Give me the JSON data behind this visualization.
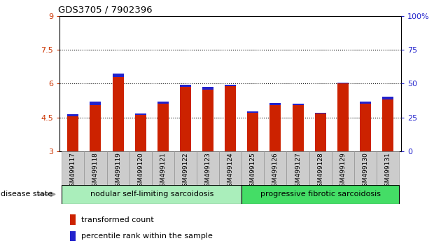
{
  "title": "GDS3705 / 7902396",
  "samples": [
    "GSM499117",
    "GSM499118",
    "GSM499119",
    "GSM499120",
    "GSM499121",
    "GSM499122",
    "GSM499123",
    "GSM499124",
    "GSM499125",
    "GSM499126",
    "GSM499127",
    "GSM499128",
    "GSM499129",
    "GSM499130",
    "GSM499131"
  ],
  "red_values": [
    4.55,
    5.05,
    6.3,
    4.62,
    5.1,
    5.85,
    5.75,
    5.88,
    4.72,
    5.05,
    5.05,
    4.72,
    6.0,
    5.1,
    5.3
  ],
  "blue_values": [
    4.65,
    5.2,
    6.45,
    4.68,
    5.22,
    5.95,
    5.85,
    5.95,
    4.77,
    5.15,
    5.12,
    4.68,
    6.05,
    5.22,
    5.42
  ],
  "ylim_left": [
    3,
    9
  ],
  "ylim_right": [
    0,
    100
  ],
  "yticks_left": [
    3,
    4.5,
    6,
    7.5,
    9
  ],
  "yticks_right": [
    0,
    25,
    50,
    75,
    100
  ],
  "ytick_labels_left": [
    "3",
    "4.5",
    "6",
    "7.5",
    "9"
  ],
  "ytick_labels_right": [
    "0",
    "25",
    "50",
    "75",
    "100%"
  ],
  "hgrid_vals": [
    4.5,
    6.0,
    7.5
  ],
  "group1_label": "nodular self-limiting sarcoidosis",
  "group2_label": "progressive fibrotic sarcoidosis",
  "group1_count": 8,
  "disease_state_label": "disease state",
  "legend1": "transformed count",
  "legend2": "percentile rank within the sample",
  "bar_color": "#cc2200",
  "blue_color": "#2222cc",
  "group1_color": "#aaeebb",
  "group2_color": "#44dd66",
  "label_bg_color": "#cccccc",
  "tick_color_left": "#cc3300",
  "tick_color_right": "#2222cc",
  "bar_width": 0.5,
  "baseline": 3
}
